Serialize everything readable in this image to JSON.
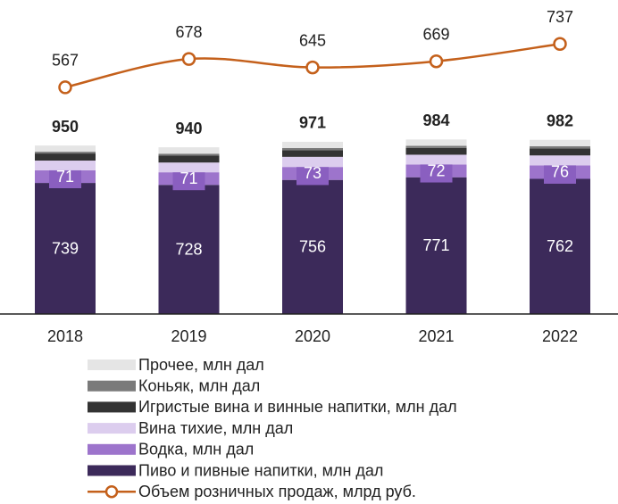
{
  "chart_data": {
    "type": "bar",
    "stacked": true,
    "categories": [
      "2018",
      "2019",
      "2020",
      "2021",
      "2022"
    ],
    "ylim": [
      0,
      1700
    ],
    "y2lim": [
      -320,
      860
    ],
    "totals": [
      950,
      940,
      971,
      984,
      982
    ],
    "series": [
      {
        "name": "Пиво и пивные напитки, млн дал",
        "color": "#3c2a5a",
        "values": [
          739,
          728,
          756,
          771,
          762
        ],
        "labels": true,
        "label_color": "#ffffff"
      },
      {
        "name": "Водка, млн дал",
        "color": "#9d74cc",
        "values": [
          71,
          71,
          73,
          72,
          76
        ],
        "labels": true,
        "label_color": "#ffffff"
      },
      {
        "name": "Вина тихие, млн дал",
        "color": "#dccdee",
        "values": [
          55,
          55,
          57,
          55,
          56
        ]
      },
      {
        "name": "Игристые вина и винные напитки, млн дал",
        "color": "#333333",
        "values": [
          40,
          40,
          38,
          38,
          40
        ]
      },
      {
        "name": "Коньяк, млн дал",
        "color": "#7a7a7a",
        "values": [
          10,
          10,
          12,
          12,
          12
        ]
      },
      {
        "name": "Прочее, млн дал",
        "color": "#e5e5e5",
        "values": [
          35,
          36,
          35,
          36,
          36
        ]
      },
      {
        "name": "Объем розничных продаж, млрд руб.",
        "type": "line",
        "axis": "y2",
        "color": "#c4601b",
        "values": [
          567,
          678,
          645,
          669,
          737
        ],
        "labels": true,
        "label_color": "#222222"
      }
    ]
  }
}
